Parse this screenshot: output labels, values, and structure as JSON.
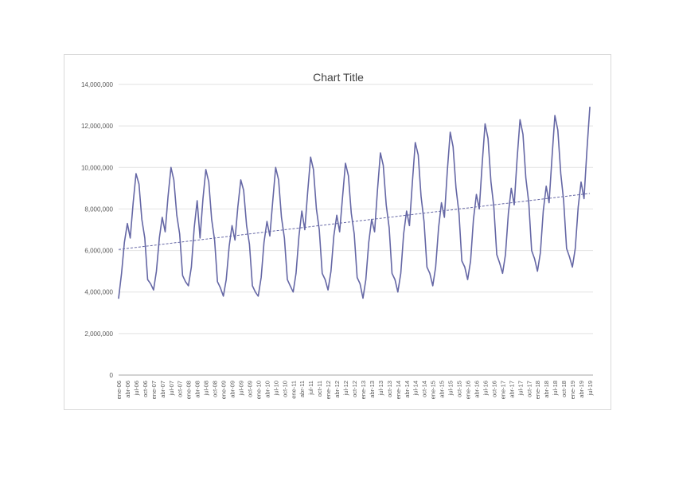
{
  "chart_data": {
    "type": "line",
    "title": "Chart Title",
    "xlabel": "",
    "ylabel": "",
    "ylim": [
      0,
      14000000
    ],
    "ytick_step": 2000000,
    "grid": true,
    "legend": "none",
    "series_color": "#6567a5",
    "series_name": "values",
    "x_frequency": "monthly",
    "x_tick_labels": [
      "ene-06",
      "abr-06",
      "jul-06",
      "oct-06",
      "ene-07",
      "abr-07",
      "jul-07",
      "oct-07",
      "ene-08",
      "abr-08",
      "jul-08",
      "oct-08",
      "ene-09",
      "abr-09",
      "jul-09",
      "oct-09",
      "ene-10",
      "abr-10",
      "jul-10",
      "oct-10",
      "ene-11",
      "abr-11",
      "jul-11",
      "oct-11",
      "ene-12",
      "abr-12",
      "jul-12",
      "oct-12",
      "ene-13",
      "abr-13",
      "jul-13",
      "oct-13",
      "ene-14",
      "abr-14",
      "jul-14",
      "oct-14",
      "ene-15",
      "abr-15",
      "jul-15",
      "oct-15",
      "ene-16",
      "abr-16",
      "jul-16",
      "oct-16",
      "ene-17",
      "abr-17",
      "jul-17",
      "oct-17",
      "ene-18",
      "abr-18",
      "jul-18",
      "oct-18",
      "ene-19",
      "abr-19",
      "jul-19"
    ],
    "values": [
      3700000,
      4900000,
      6400000,
      7300000,
      6600000,
      8300000,
      9700000,
      9200000,
      7500000,
      6600000,
      4600000,
      4400000,
      4100000,
      5000000,
      6600000,
      7600000,
      6900000,
      8600000,
      10000000,
      9400000,
      7700000,
      6800000,
      4800000,
      4500000,
      4300000,
      5200000,
      7100000,
      8400000,
      6600000,
      8500000,
      9900000,
      9300000,
      7500000,
      6500000,
      4500000,
      4200000,
      3800000,
      4600000,
      6200000,
      7200000,
      6500000,
      8100000,
      9400000,
      8900000,
      7200000,
      6300000,
      4300000,
      4000000,
      3800000,
      4700000,
      6400000,
      7400000,
      6700000,
      8400000,
      10000000,
      9400000,
      7600000,
      6600000,
      4600000,
      4300000,
      4000000,
      4900000,
      6700000,
      7900000,
      7000000,
      8800000,
      10500000,
      9900000,
      8000000,
      7000000,
      4900000,
      4600000,
      4100000,
      5000000,
      6700000,
      7700000,
      6900000,
      8600000,
      10200000,
      9600000,
      7800000,
      6800000,
      4700000,
      4400000,
      3700000,
      4600000,
      6400000,
      7500000,
      6900000,
      8900000,
      10700000,
      10100000,
      8200000,
      7100000,
      4900000,
      4600000,
      4000000,
      4900000,
      6800000,
      7900000,
      7200000,
      9300000,
      11200000,
      10600000,
      8600000,
      7400000,
      5200000,
      4900000,
      4300000,
      5200000,
      7100000,
      8300000,
      7600000,
      9800000,
      11700000,
      11000000,
      9000000,
      7800000,
      5500000,
      5200000,
      4600000,
      5500000,
      7500000,
      8700000,
      8000000,
      10200000,
      12100000,
      11400000,
      9300000,
      8100000,
      5800000,
      5400000,
      4900000,
      5800000,
      7800000,
      9000000,
      8200000,
      10400000,
      12300000,
      11600000,
      9500000,
      8300000,
      6000000,
      5600000,
      5000000,
      5900000,
      7900000,
      9100000,
      8300000,
      10500000,
      12500000,
      11800000,
      9700000,
      8400000,
      6100000,
      5700000,
      5200000,
      6100000,
      8100000,
      9300000,
      8500000,
      10800000,
      12900000
    ],
    "trendline": {
      "style": "dashed-linear",
      "start": 6050000,
      "end": 8750000
    }
  }
}
